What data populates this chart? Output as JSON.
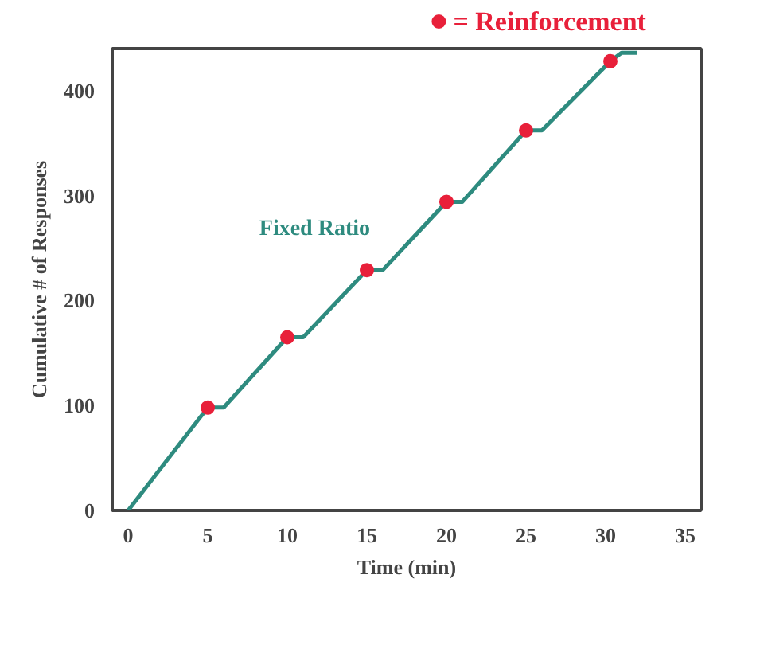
{
  "chart_data": {
    "type": "line",
    "xlabel": "Time (min)",
    "ylabel": "Cumulative # of Responses",
    "xlim": [
      -1,
      36
    ],
    "ylim": [
      0,
      440
    ],
    "xticks": [
      0,
      5,
      10,
      15,
      20,
      25,
      30,
      35
    ],
    "yticks": [
      0,
      100,
      200,
      300,
      400
    ],
    "grid": false,
    "legend": "top right",
    "series": [
      {
        "name": "Fixed Ratio",
        "color": "#2e8b7f",
        "x": [
          0,
          5,
          6,
          10,
          11,
          15,
          16,
          20,
          21,
          25,
          26,
          30.3,
          31,
          32
        ],
        "values": [
          0,
          98,
          98,
          165,
          165,
          229,
          229,
          294,
          294,
          362,
          362,
          428,
          436,
          436
        ]
      },
      {
        "name": "= Reinforcement",
        "color": "#e8203a",
        "type": "scatter",
        "marker": "circle",
        "x": [
          5,
          10,
          15,
          20,
          25,
          30.3
        ],
        "values": [
          98,
          165,
          229,
          294,
          362,
          428
        ]
      }
    ]
  }
}
